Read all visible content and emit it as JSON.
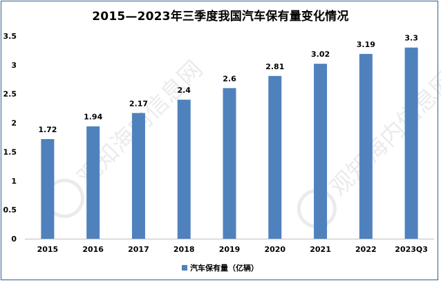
{
  "chart_data": {
    "type": "bar",
    "title": "2015—2023年三季度我国汽车保有量变化情况",
    "categories": [
      "2015",
      "2016",
      "2017",
      "2018",
      "2019",
      "2020",
      "2021",
      "2022",
      "2023Q3"
    ],
    "series": [
      {
        "name": "汽车保有量（亿辆）",
        "values": [
          1.72,
          1.94,
          2.17,
          2.4,
          2.6,
          2.81,
          3.02,
          3.19,
          3.3
        ]
      }
    ],
    "data_labels": [
      "1.72",
      "1.94",
      "2.17",
      "2.4",
      "2.6",
      "2.81",
      "3.02",
      "3.19",
      "3.3"
    ],
    "ylim": [
      0,
      3.5
    ],
    "yticks": [
      "0",
      "0.5",
      "1",
      "1.5",
      "2",
      "2.5",
      "3",
      "3.5"
    ],
    "grid": false,
    "legend_position": "bottom",
    "bar_color": "#4f81bd",
    "watermark": "观知海内信息网"
  }
}
